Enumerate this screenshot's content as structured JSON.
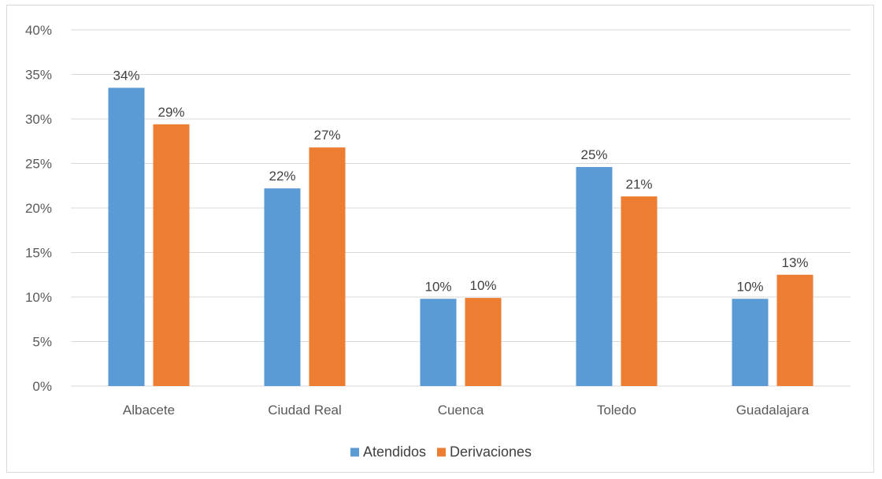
{
  "chart_data": {
    "type": "bar",
    "title": "",
    "xlabel": "",
    "ylabel": "",
    "categories": [
      "Albacete",
      "Ciudad Real",
      "Cuenca",
      "Toledo",
      "Guadalajara"
    ],
    "series": [
      {
        "name": "Atendidos",
        "values": [
          33.5,
          22.2,
          9.8,
          24.6,
          9.8
        ],
        "labels": [
          "34%",
          "22%",
          "10%",
          "25%",
          "10%"
        ],
        "color": "#5b9bd5"
      },
      {
        "name": "Derivaciones",
        "values": [
          29.4,
          26.8,
          9.9,
          21.3,
          12.5
        ],
        "labels": [
          "29%",
          "27%",
          "10%",
          "21%",
          "13%"
        ],
        "color": "#ed7d31"
      }
    ],
    "ylim": [
      0,
      40
    ],
    "ytick_values": [
      0,
      5,
      10,
      15,
      20,
      25,
      30,
      35,
      40
    ],
    "ytick_labels": [
      "0%",
      "5%",
      "10%",
      "15%",
      "20%",
      "25%",
      "30%",
      "35%",
      "40%"
    ],
    "grid": true,
    "legend_position": "bottom"
  }
}
